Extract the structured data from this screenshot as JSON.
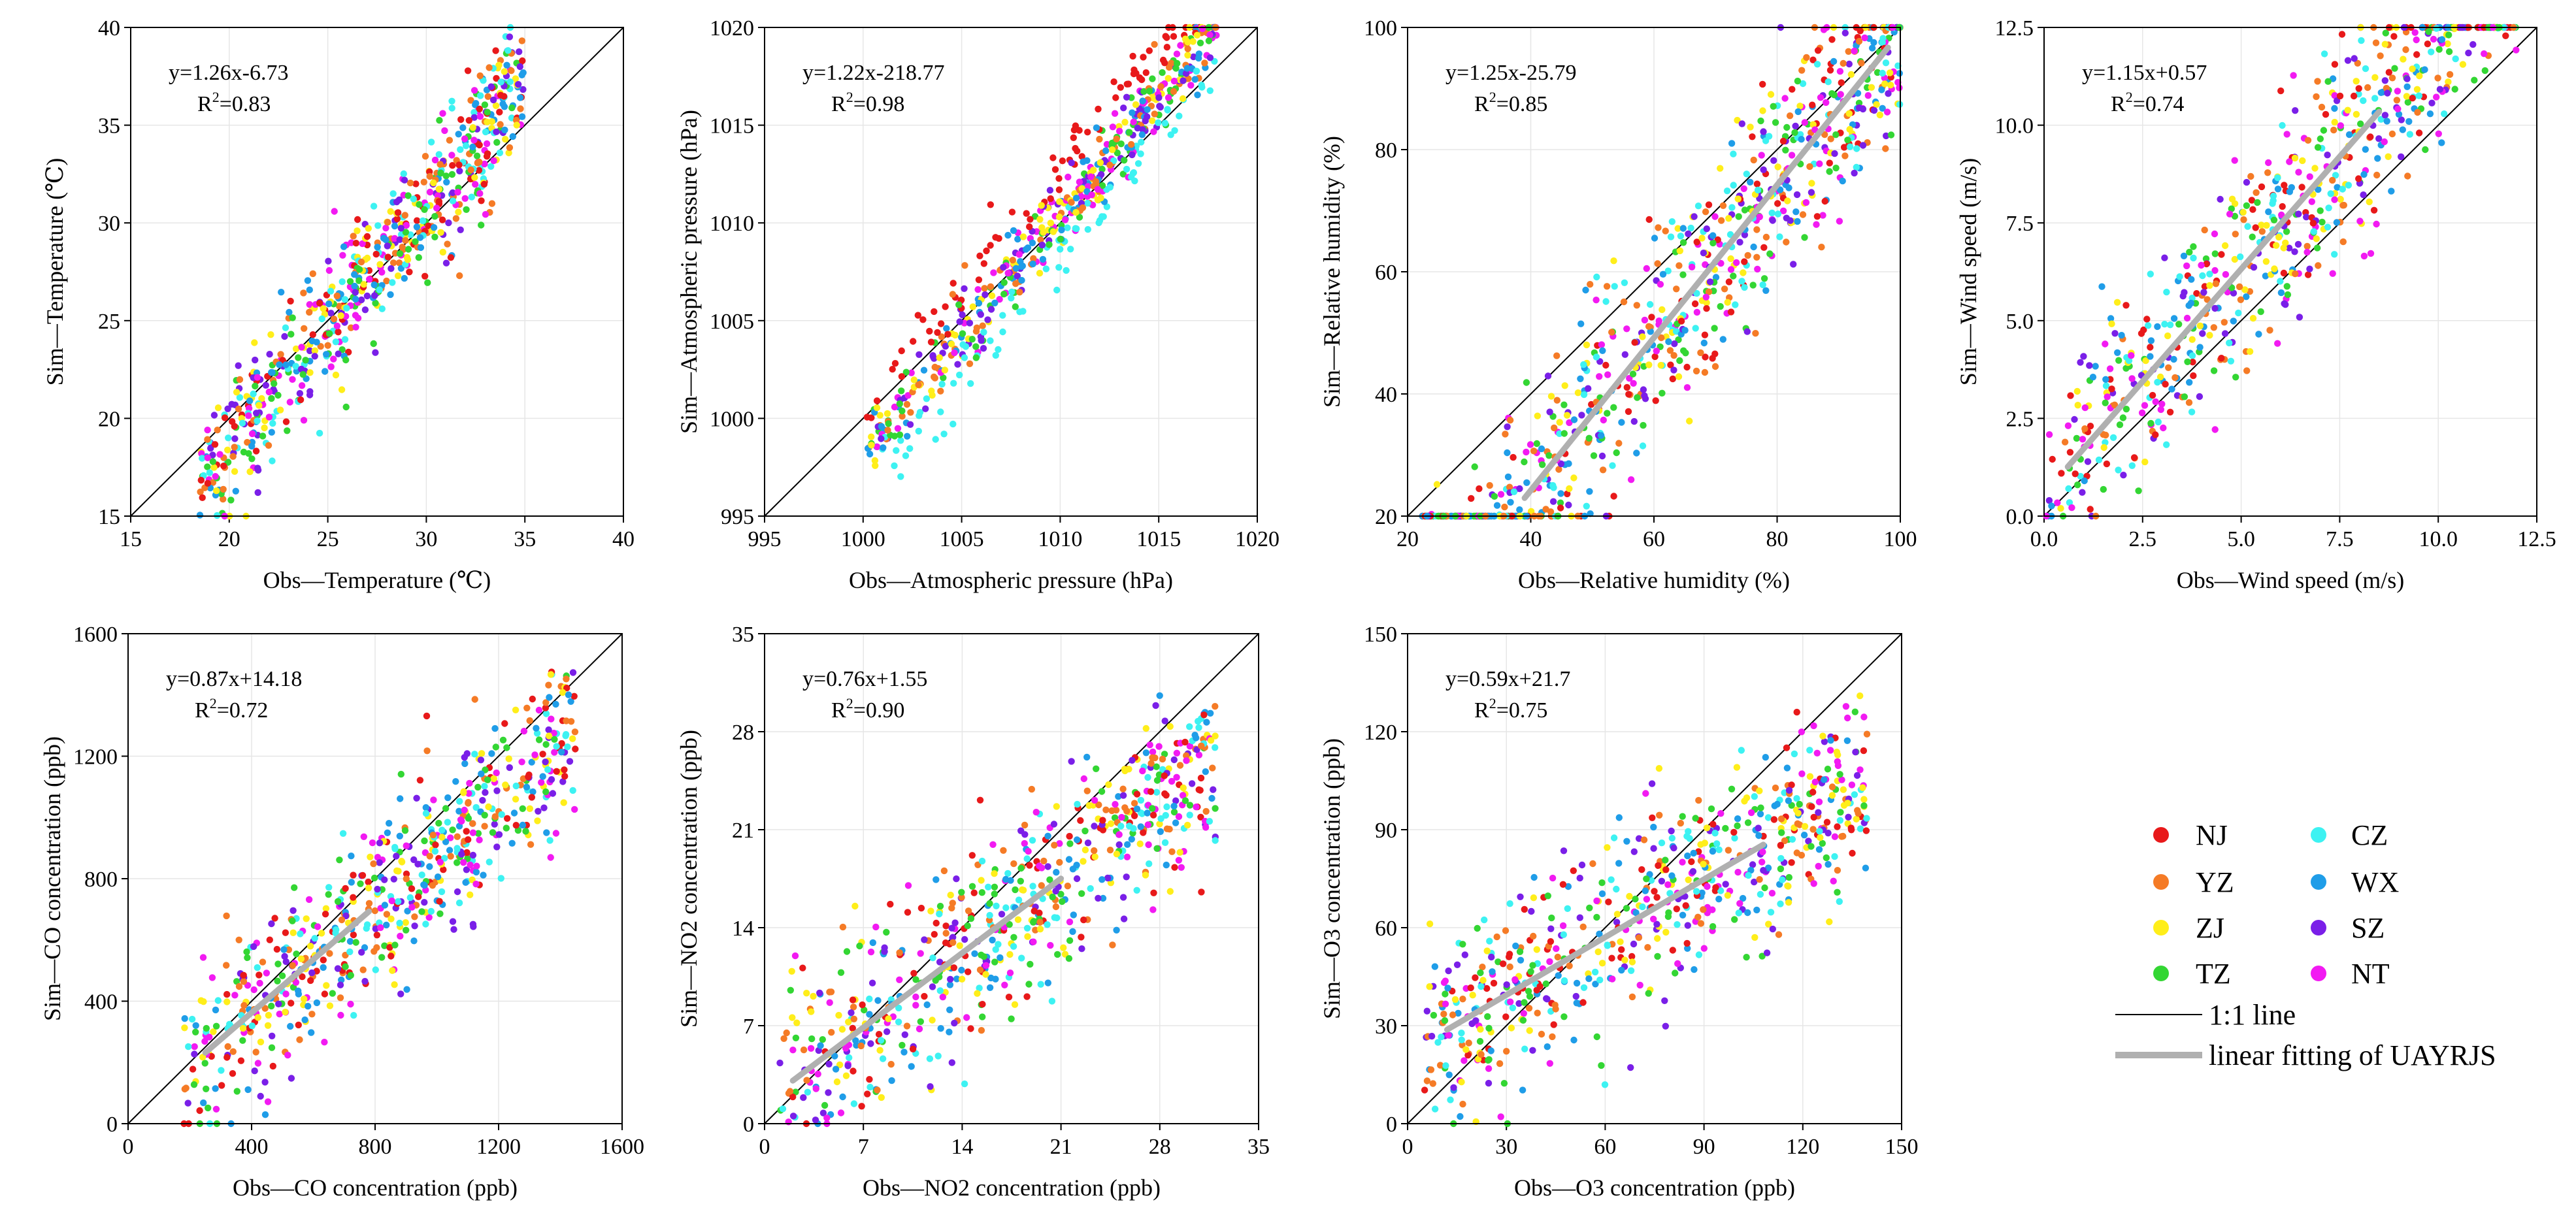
{
  "legend": {
    "stations": [
      {
        "label": "NJ",
        "color": "#e8191a"
      },
      {
        "label": "YZ",
        "color": "#f57b26"
      },
      {
        "label": "ZJ",
        "color": "#ffee1a"
      },
      {
        "label": "TZ",
        "color": "#33d633"
      },
      {
        "label": "CZ",
        "color": "#3df2f2"
      },
      {
        "label": "WX",
        "color": "#1f9de8"
      },
      {
        "label": "SZ",
        "color": "#7a1fe8"
      },
      {
        "label": "NT",
        "color": "#f21af2"
      }
    ],
    "one_to_one_label": "1:1 line",
    "fit_label": "linear fitting of UAYRJS"
  },
  "chart_data": [
    {
      "type": "scatter",
      "id": "temperature",
      "xlabel": "Obs—Temperature (℃)",
      "ylabel": "Sim—Temperature (℃)",
      "xlim": [
        15,
        40
      ],
      "ylim": [
        15,
        40
      ],
      "xticks": [
        "15",
        "20",
        "25",
        "30",
        "35",
        "40"
      ],
      "yticks": [
        "15",
        "20",
        "25",
        "30",
        "35",
        "40"
      ],
      "equation": "y=1.26x-6.73",
      "r2_prefix": "R",
      "r2_sup": "2",
      "r2_value": "=0.83",
      "slope": 1.26,
      "intercept": -6.73,
      "fit_range": null,
      "point_count": 700,
      "data_range": [
        18.5,
        35
      ]
    },
    {
      "type": "scatter",
      "id": "pressure",
      "xlabel": "Obs—Atmospheric pressure (hPa)",
      "ylabel": "Sim—Atmospheric pressure (hPa)",
      "xlim": [
        995,
        1020
      ],
      "ylim": [
        995,
        1020
      ],
      "xticks": [
        "995",
        "1000",
        "1005",
        "1010",
        "1015",
        "1020"
      ],
      "yticks": [
        "995",
        "1000",
        "1005",
        "1010",
        "1015",
        "1020"
      ],
      "equation": "y=1.22x-218.77",
      "r2_prefix": "R",
      "r2_sup": "2",
      "r2_value": "=0.98",
      "slope": 1.22,
      "intercept": -218.77,
      "fit_range": null,
      "point_count": 650,
      "data_range": [
        1000,
        1018
      ]
    },
    {
      "type": "scatter",
      "id": "humidity",
      "xlabel": "Obs—Relative humidity (%)",
      "ylabel": "Sim—Relative humidity (%)",
      "xlim": [
        20,
        100
      ],
      "ylim": [
        20,
        100
      ],
      "xticks": [
        "20",
        "40",
        "60",
        "80",
        "100"
      ],
      "yticks": [
        "20",
        "40",
        "60",
        "80",
        "100"
      ],
      "equation": "y=1.25x-25.79",
      "r2_prefix": "R",
      "r2_sup": "2",
      "r2_value": "=0.85",
      "slope": 1.25,
      "intercept": -25.79,
      "fit_range": [
        39,
        98
      ],
      "point_count": 800,
      "data_range": [
        22,
        100
      ]
    },
    {
      "type": "scatter",
      "id": "wind",
      "xlabel": "Obs—Wind speed (m/s)",
      "ylabel": "Sim—Wind speed (m/s)",
      "xlim": [
        0,
        12.5
      ],
      "ylim": [
        0,
        12.5
      ],
      "xticks": [
        "0.0",
        "2.5",
        "5.0",
        "7.5",
        "10.0",
        "12.5"
      ],
      "yticks": [
        "0.0",
        "2.5",
        "5.0",
        "7.5",
        "10.0",
        "12.5"
      ],
      "equation": "y=1.15x+0.57",
      "r2_prefix": "R",
      "r2_sup": "2",
      "r2_value": "=0.74",
      "slope": 1.15,
      "intercept": 0.57,
      "fit_range": [
        0.6,
        8.5
      ],
      "point_count": 650,
      "data_range": [
        0,
        12
      ]
    },
    {
      "type": "scatter",
      "id": "co",
      "xlabel": "Obs—CO concentration (ppb)",
      "ylabel": "Sim—CO concentration (ppb)",
      "xlim": [
        0,
        1600
      ],
      "ylim": [
        0,
        1600
      ],
      "xticks": [
        "0",
        "400",
        "800",
        "1200",
        "1600"
      ],
      "yticks": [
        "0",
        "400",
        "800",
        "1200",
        "1600"
      ],
      "equation": "y=0.87x+14.18",
      "r2_prefix": "R",
      "r2_sup": "2",
      "r2_value": "=0.72",
      "slope": 0.87,
      "intercept": 14.18,
      "fit_range": [
        250,
        780
      ],
      "point_count": 650,
      "data_range": [
        180,
        1450
      ]
    },
    {
      "type": "scatter",
      "id": "no2",
      "xlabel": "Obs—NO2 concentration (ppb)",
      "ylabel": "Sim—NO2 concentration (ppb)",
      "xlim": [
        0,
        35
      ],
      "ylim": [
        0,
        35
      ],
      "xticks": [
        "0",
        "7",
        "14",
        "21",
        "28",
        "35"
      ],
      "yticks": [
        "0",
        "7",
        "14",
        "21",
        "28",
        "35"
      ],
      "equation": "y=0.76x+1.55",
      "r2_prefix": "R",
      "r2_sup": "2",
      "r2_value": "=0.90",
      "slope": 0.76,
      "intercept": 1.55,
      "fit_range": [
        2,
        21
      ],
      "point_count": 650,
      "data_range": [
        1,
        32
      ]
    },
    {
      "type": "scatter",
      "id": "o3",
      "xlabel": "Obs—O3 concentration (ppb)",
      "ylabel": "Sim—O3 concentration (ppb)",
      "xlim": [
        0,
        150
      ],
      "ylim": [
        0,
        150
      ],
      "xticks": [
        "0",
        "30",
        "60",
        "90",
        "120",
        "150"
      ],
      "yticks": [
        "0",
        "30",
        "60",
        "90",
        "120",
        "150"
      ],
      "equation": "y=0.59x+21.7",
      "r2_prefix": "R",
      "r2_sup": "2",
      "r2_value": "=0.75",
      "slope": 0.59,
      "intercept": 21.7,
      "fit_range": [
        12,
        108
      ],
      "point_count": 650,
      "data_range": [
        5,
        140
      ]
    }
  ]
}
